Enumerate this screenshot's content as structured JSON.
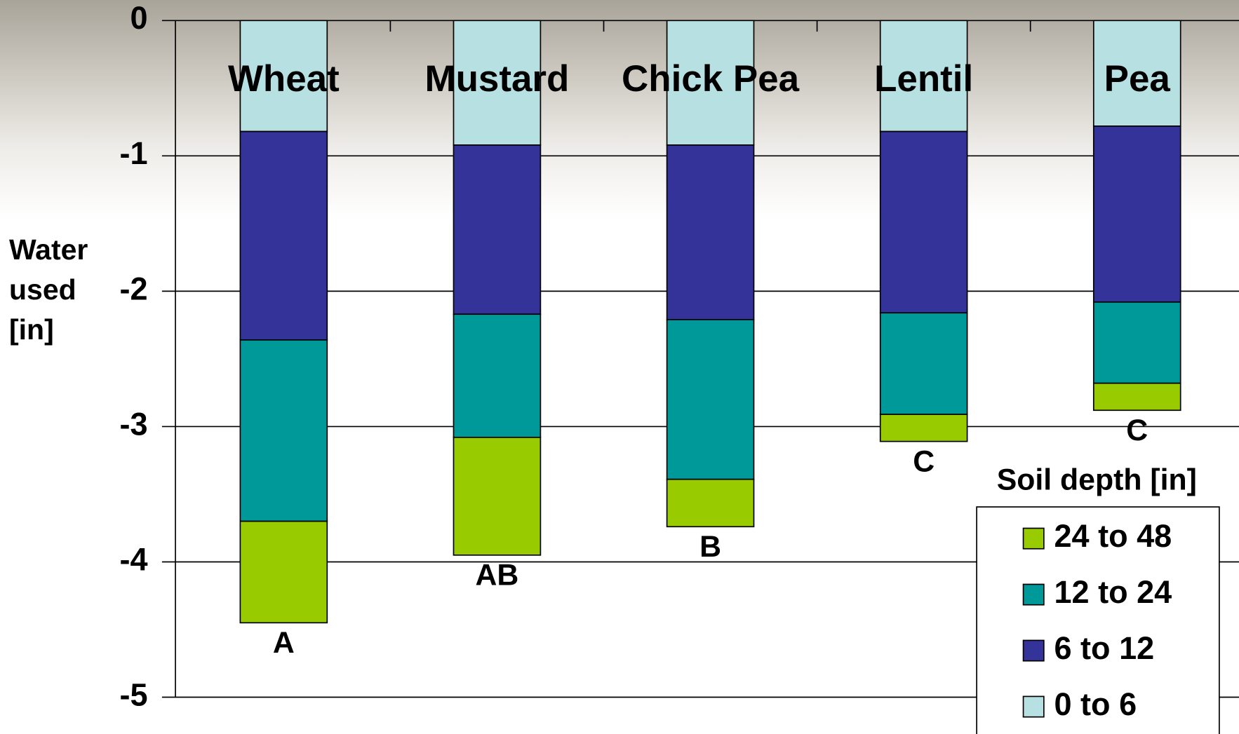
{
  "chart_data": {
    "type": "stacked_bar",
    "ylabel": "Water used [in]",
    "categories": [
      "Wheat",
      "Mustard",
      "Chick Pea",
      "Lentil",
      "Pea"
    ],
    "annotations": [
      "A",
      "AB",
      "B",
      "C",
      "C"
    ],
    "series": [
      {
        "name": "0 to 6",
        "color": "#b7e0e3",
        "values": [
          -0.82,
          -0.92,
          -0.92,
          -0.82,
          -0.78
        ]
      },
      {
        "name": "6 to 12",
        "color": "#343399",
        "values": [
          -1.54,
          -1.25,
          -1.29,
          -1.34,
          -1.3
        ]
      },
      {
        "name": "12 to 24",
        "color": "#009999",
        "values": [
          -1.34,
          -0.91,
          -1.18,
          -0.75,
          -0.6
        ]
      },
      {
        "name": "24 to 48",
        "color": "#99cc00",
        "values": [
          -0.75,
          -0.87,
          -0.35,
          -0.2,
          -0.2
        ]
      }
    ],
    "legend_title": "Soil depth [in]",
    "ylim": [
      -5,
      0
    ],
    "yticks": [
      0,
      -1,
      -2,
      -3,
      -4,
      -5
    ],
    "grid": true
  }
}
